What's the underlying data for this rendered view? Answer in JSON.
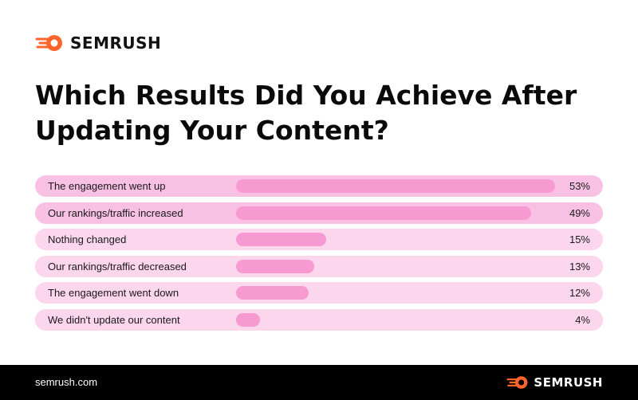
{
  "brand": {
    "name": "SEMRUSH",
    "site": "semrush.com",
    "accent_color": "#ff642d"
  },
  "chart_data": {
    "type": "bar",
    "orientation": "horizontal",
    "title": "Which Results Did You Achieve After Updating Your Content?",
    "categories": [
      "The engagement went up",
      "Our rankings/traffic increased",
      "Nothing changed",
      "Our rankings/traffic decreased",
      "The engagement went down",
      "We didn't update our content"
    ],
    "values": [
      53,
      49,
      15,
      13,
      12,
      4
    ],
    "value_labels": [
      "53%",
      "49%",
      "15%",
      "13%",
      "12%",
      "4%"
    ],
    "highlighted": [
      true,
      true,
      false,
      false,
      false,
      false
    ],
    "bar_color": "#f79ad2",
    "track_color": "#fbd6ec",
    "highlight_track_color": "#f8c0e2",
    "xlim": [
      0,
      53
    ]
  }
}
